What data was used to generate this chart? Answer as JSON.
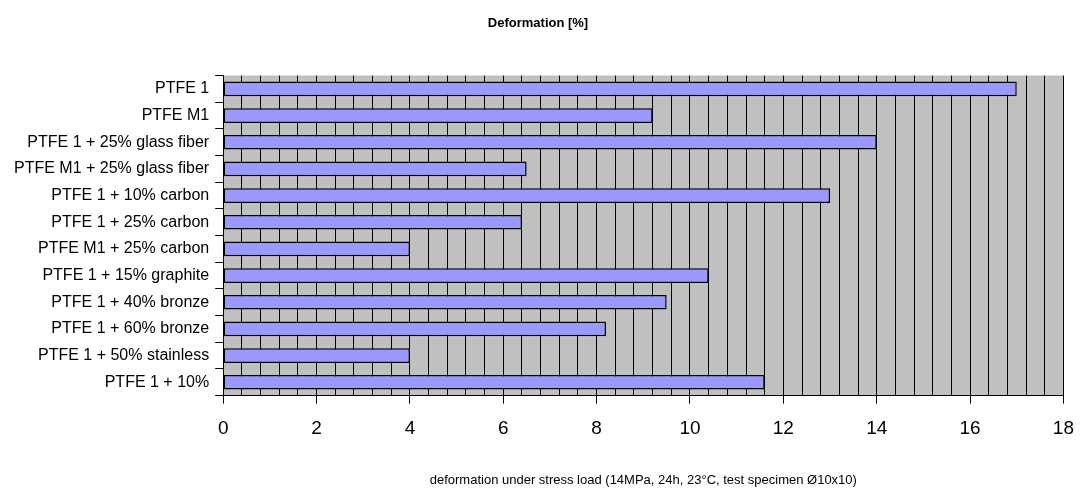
{
  "chart_data": {
    "type": "bar",
    "orientation": "horizontal",
    "title": "Deformation [%]",
    "xlabel": "deformation under stress load (14MPa, 24h, 23°C, test specimen Ø10x10)",
    "categories": [
      "PTFE 1",
      "PTFE M1",
      "PTFE 1 + 25% glass fiber",
      "PTFE M1 + 25% glass fiber",
      "PTFE 1 + 10% carbon",
      "PTFE 1 + 25% carbon",
      "PTFE M1 + 25% carbon",
      "PTFE 1 + 15% graphite",
      "PTFE 1 + 40% bronze",
      "PTFE 1 + 60% bronze",
      "PTFE 1 + 50% stainless",
      "PTFE 1 + 10%"
    ],
    "values": [
      17,
      9.2,
      14,
      6.5,
      13,
      6.4,
      4,
      10.4,
      9.5,
      8.2,
      4,
      11.6
    ],
    "color": "#9999ff",
    "xlim": [
      0,
      18
    ],
    "xticks": [
      0,
      {
        "value": 0.4,
        "label": null
      },
      {
        "value": 0.8,
        "label": null
      },
      {
        "value": 1.2,
        "label": null
      },
      {
        "value": 1.6,
        "label": null
      },
      2,
      {
        "value": 2.4,
        "label": null
      },
      {
        "value": 2.8,
        "label": null
      },
      {
        "value": 3.2,
        "label": null
      },
      {
        "value": 3.6,
        "label": null
      },
      4,
      {
        "value": 4.4,
        "label": null
      },
      {
        "value": 4.8,
        "label": null
      },
      {
        "value": 5.2,
        "label": null
      },
      {
        "value": 5.6,
        "label": null
      },
      6,
      {
        "value": 6.4,
        "label": null
      },
      {
        "value": 6.8,
        "label": null
      },
      {
        "value": 7.2,
        "label": null
      },
      {
        "value": 7.6,
        "label": null
      },
      8,
      {
        "value": 8.4,
        "label": null
      },
      {
        "value": 8.8,
        "label": null
      },
      {
        "value": 9.2,
        "label": null
      },
      {
        "value": 9.6,
        "label": null
      },
      10,
      {
        "value": 10.4,
        "label": null
      },
      {
        "value": 10.8,
        "label": null
      },
      {
        "value": 11.2,
        "label": null
      },
      {
        "value": 11.6,
        "label": null
      },
      12,
      {
        "value": 12.4,
        "label": null
      },
      {
        "value": 12.8,
        "label": null
      },
      {
        "value": 13.2,
        "label": null
      },
      {
        "value": 13.6,
        "label": null
      },
      14,
      {
        "value": 14.4,
        "label": null
      },
      {
        "value": 14.8,
        "label": null
      },
      {
        "value": 15.2,
        "label": null
      },
      {
        "value": 15.6,
        "label": null
      },
      16,
      {
        "value": 16.4,
        "label": null
      },
      {
        "value": 16.8,
        "label": null
      },
      {
        "value": 17.2,
        "label": null
      },
      {
        "value": 17.6,
        "label": null
      },
      18
    ],
    "grid": "x",
    "legend": false
  }
}
